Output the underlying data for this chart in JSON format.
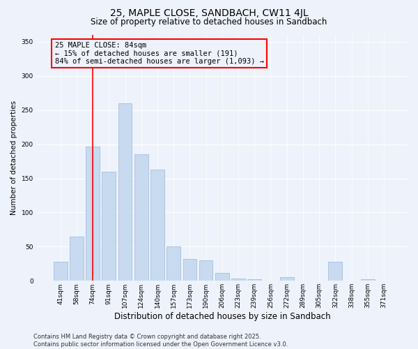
{
  "title": "25, MAPLE CLOSE, SANDBACH, CW11 4JL",
  "subtitle": "Size of property relative to detached houses in Sandbach",
  "xlabel": "Distribution of detached houses by size in Sandbach",
  "ylabel": "Number of detached properties",
  "categories": [
    "41sqm",
    "58sqm",
    "74sqm",
    "91sqm",
    "107sqm",
    "124sqm",
    "140sqm",
    "157sqm",
    "173sqm",
    "190sqm",
    "206sqm",
    "223sqm",
    "239sqm",
    "256sqm",
    "272sqm",
    "289sqm",
    "305sqm",
    "322sqm",
    "338sqm",
    "355sqm",
    "371sqm"
  ],
  "values": [
    28,
    65,
    197,
    160,
    260,
    185,
    163,
    50,
    32,
    30,
    12,
    3,
    2,
    0,
    5,
    0,
    0,
    28,
    0,
    2,
    0
  ],
  "bar_color": "#c8daf0",
  "bar_edgecolor": "#9ab8d8",
  "vline_x_index": 2,
  "vline_color": "red",
  "annotation_text": "25 MAPLE CLOSE: 84sqm\n← 15% of detached houses are smaller (191)\n84% of semi-detached houses are larger (1,093) →",
  "annotation_box_edgecolor": "red",
  "annotation_fontsize": 7.5,
  "ylim": [
    0,
    360
  ],
  "yticks": [
    0,
    50,
    100,
    150,
    200,
    250,
    300,
    350
  ],
  "footer": "Contains HM Land Registry data © Crown copyright and database right 2025.\nContains public sector information licensed under the Open Government Licence v3.0.",
  "background_color": "#eef2fb",
  "grid_color": "#ffffff",
  "title_fontsize": 10,
  "subtitle_fontsize": 8.5,
  "xlabel_fontsize": 8.5,
  "ylabel_fontsize": 7.5,
  "tick_fontsize": 6.5,
  "footer_fontsize": 6.0
}
